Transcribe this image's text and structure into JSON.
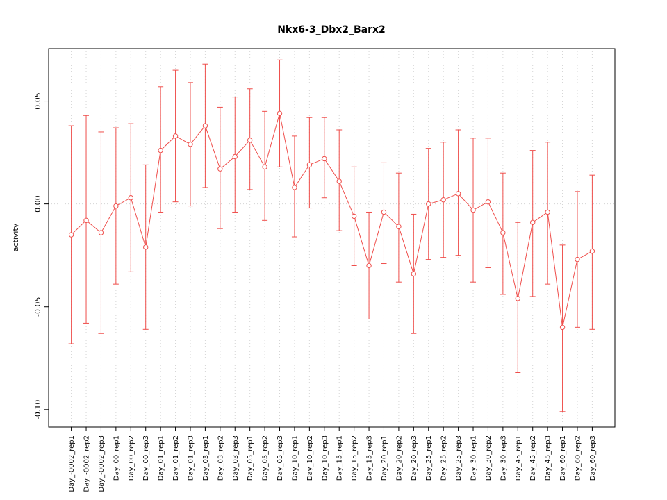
{
  "chart_data": {
    "type": "line",
    "title": "Nkx6-3_Dbx2_Barx2",
    "xlabel": "",
    "ylabel": "activity",
    "ylim": [
      -0.1085,
      0.0755
    ],
    "y_ticks": [
      -0.1,
      -0.05,
      0.0,
      0.05
    ],
    "y_tick_labels": [
      "-0.10",
      "-0.05",
      "0.00",
      "0.05"
    ],
    "grid": "vertical-dotted-gridlines-and-dotted-zero-line",
    "legend": "none",
    "marker": "open-circle",
    "series_color": "#ef4e4b",
    "grid_color": "#d4d4d4",
    "axis_color": "#000000",
    "categories": [
      "Day_-0002_rep1",
      "Day_-0002_rep2",
      "Day_-0002_rep3",
      "Day_00_rep1",
      "Day_00_rep2",
      "Day_00_rep3",
      "Day_01_rep1",
      "Day_01_rep2",
      "Day_01_rep3",
      "Day_03_rep1",
      "Day_03_rep2",
      "Day_03_rep3",
      "Day_05_rep1",
      "Day_05_rep2",
      "Day_05_rep3",
      "Day_10_rep1",
      "Day_10_rep2",
      "Day_10_rep3",
      "Day_15_rep1",
      "Day_15_rep2",
      "Day_15_rep3",
      "Day_20_rep1",
      "Day_20_rep2",
      "Day_20_rep3",
      "Day_25_rep1",
      "Day_25_rep2",
      "Day_25_rep3",
      "Day_30_rep1",
      "Day_30_rep2",
      "Day_30_rep3",
      "Day_45_rep1",
      "Day_45_rep2",
      "Day_45_rep3",
      "Day_60_rep1",
      "Day_60_rep2",
      "Day_60_rep3"
    ],
    "values": [
      -0.015,
      -0.008,
      -0.014,
      -0.001,
      0.003,
      -0.021,
      0.026,
      0.033,
      0.029,
      0.038,
      0.017,
      0.023,
      0.031,
      0.018,
      0.044,
      0.008,
      0.019,
      0.022,
      0.011,
      -0.006,
      -0.03,
      -0.004,
      -0.011,
      -0.034,
      0.0,
      0.002,
      0.005,
      -0.003,
      0.001,
      -0.014,
      -0.046,
      -0.009,
      -0.004,
      -0.06,
      -0.027,
      -0.023
    ],
    "error_high": [
      0.038,
      0.043,
      0.035,
      0.037,
      0.039,
      0.019,
      0.057,
      0.065,
      0.059,
      0.068,
      0.047,
      0.052,
      0.056,
      0.045,
      0.07,
      0.033,
      0.042,
      0.042,
      0.036,
      0.018,
      -0.004,
      0.02,
      0.015,
      -0.005,
      0.027,
      0.03,
      0.036,
      0.032,
      0.032,
      0.015,
      -0.009,
      0.026,
      0.03,
      -0.02,
      0.006,
      0.014
    ],
    "error_low": [
      -0.068,
      -0.058,
      -0.063,
      -0.039,
      -0.033,
      -0.061,
      -0.004,
      0.001,
      -0.001,
      0.008,
      -0.012,
      -0.004,
      0.007,
      -0.008,
      0.018,
      -0.016,
      -0.002,
      0.003,
      -0.013,
      -0.03,
      -0.056,
      -0.029,
      -0.038,
      -0.063,
      -0.027,
      -0.026,
      -0.025,
      -0.038,
      -0.031,
      -0.044,
      -0.082,
      -0.045,
      -0.039,
      -0.101,
      -0.06,
      -0.061
    ]
  }
}
